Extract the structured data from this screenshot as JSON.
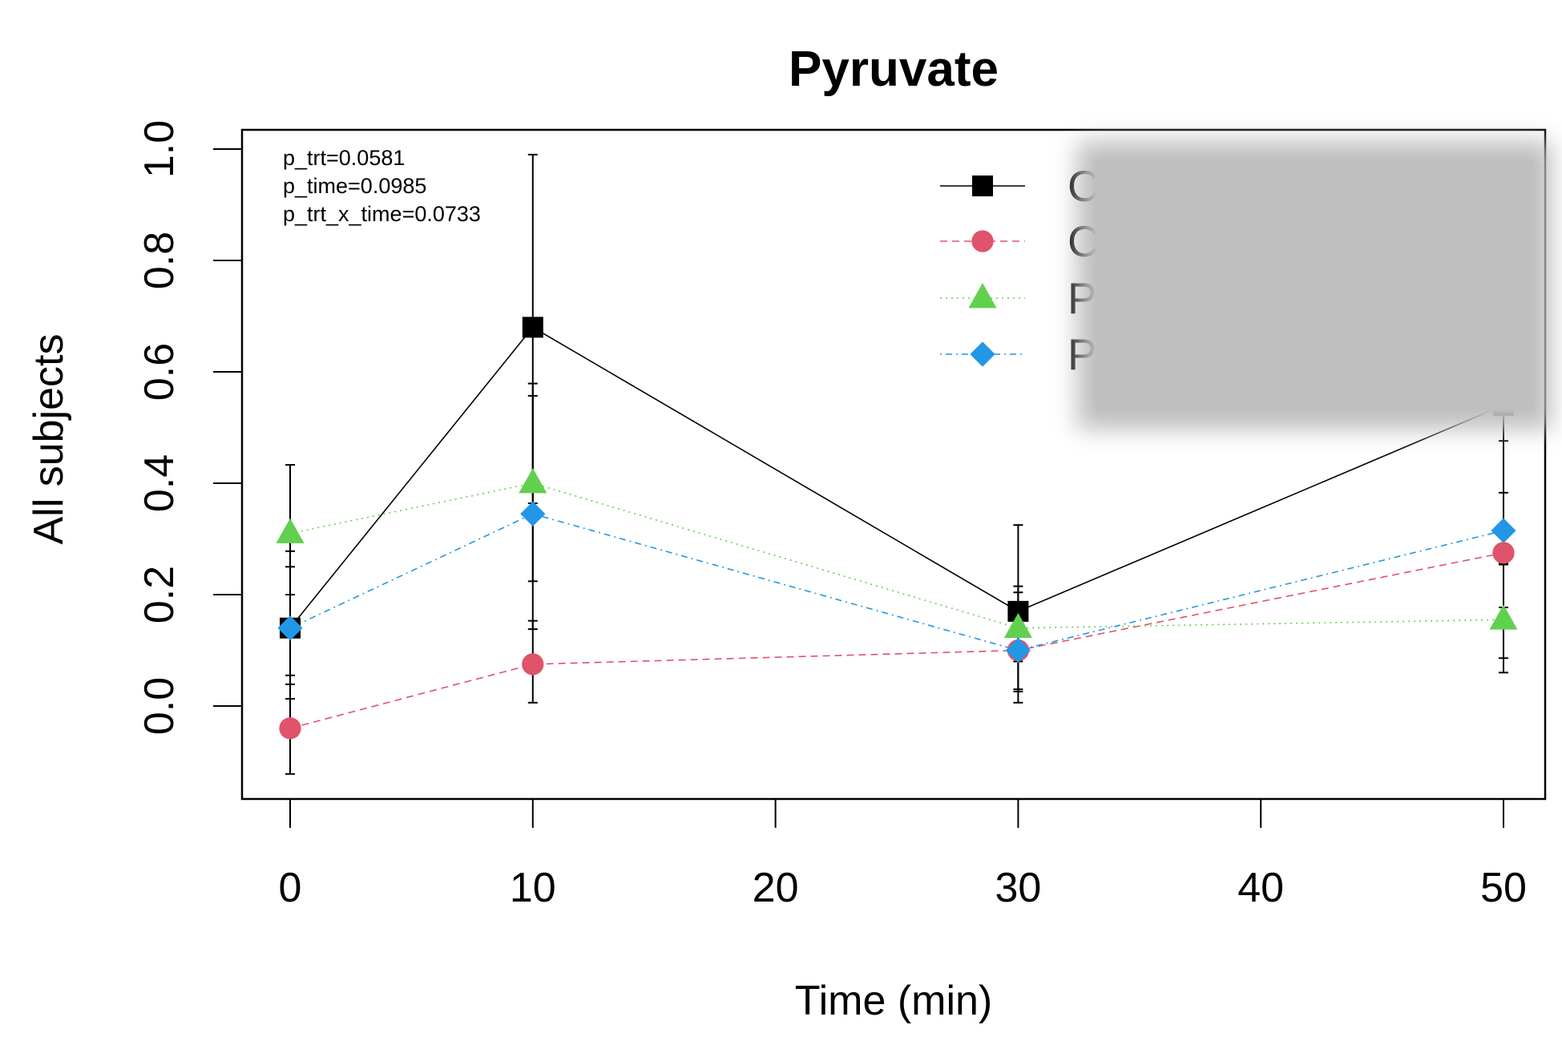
{
  "chart_data": {
    "type": "line",
    "title": "Pyruvate",
    "xlabel": "Time (min)",
    "ylabel": "All subjects",
    "xlim": [
      -2,
      52
    ],
    "ylim": [
      -0.17,
      1.03
    ],
    "x_ticks": [
      0,
      10,
      20,
      30,
      40,
      50
    ],
    "x_tick_labels": [
      "0",
      "10",
      "20",
      "30",
      "40",
      "50"
    ],
    "y_ticks": [
      0.0,
      0.2,
      0.4,
      0.6,
      0.8,
      1.0
    ],
    "y_tick_labels": [
      "0.0",
      "0.2",
      "0.4",
      "0.6",
      "0.8",
      "1.0"
    ],
    "grid": false,
    "legend_position": "top-right",
    "x": [
      0,
      10,
      30,
      50
    ],
    "annotations": [
      "p_trt=0.0581",
      "p_time=0.0985",
      "p_trt_x_time=0.0733"
    ],
    "series": [
      {
        "name": "Ca",
        "legend_label_visible": "Ca",
        "color": "#000000",
        "marker": "square",
        "line_style": "solid",
        "values": [
          0.14,
          0.68,
          0.17,
          0.54
        ],
        "error_low": [
          0.013,
          0.364,
          0.03,
          0.177
        ],
        "error_high": [
          0.278,
          0.99,
          0.325,
          0.91
        ]
      },
      {
        "name": "Ca",
        "legend_label_visible": "Ca",
        "color": "#DF536B",
        "marker": "circle",
        "line_style": "dashed",
        "values": [
          -0.04,
          0.075,
          0.1,
          0.275
        ],
        "error_low": [
          -0.122,
          0.006,
          0.006,
          0.086
        ],
        "error_high": [
          0.039,
          0.153,
          0.204,
          0.476
        ]
      },
      {
        "name": "Pl",
        "legend_label_visible": "Pl",
        "color": "#61D04F",
        "marker": "triangle",
        "line_style": "dotted",
        "values": [
          0.31,
          0.4,
          0.14,
          0.155
        ],
        "error_low": [
          0.2,
          0.224,
          0.08,
          0.06
        ],
        "error_high": [
          0.433,
          0.579,
          0.215,
          0.256
        ]
      },
      {
        "name": "Pl",
        "legend_label_visible": "Pl",
        "color": "#2297E6",
        "marker": "diamond",
        "line_style": "dotdash",
        "values": [
          0.14,
          0.345,
          0.1,
          0.315
        ],
        "error_low": [
          0.055,
          0.138,
          0.026,
          0.254
        ],
        "error_high": [
          0.25,
          0.557,
          0.175,
          0.383
        ]
      }
    ]
  }
}
